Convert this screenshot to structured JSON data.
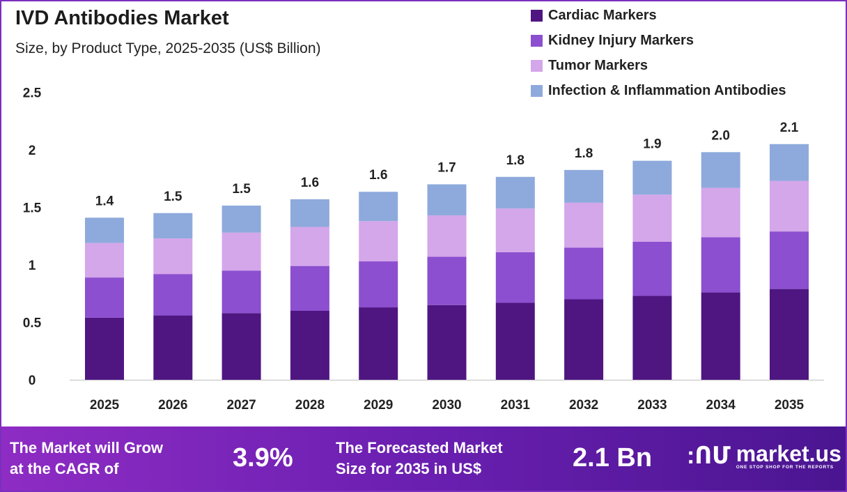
{
  "chart_data": {
    "type": "bar",
    "stacked": true,
    "title": "IVD Antibodies Market",
    "subtitle": "Size, by Product Type, 2025-2035 (US$ Billion)",
    "categories": [
      "2025",
      "2026",
      "2027",
      "2028",
      "2029",
      "2030",
      "2031",
      "2032",
      "2033",
      "2034",
      "2035"
    ],
    "series": [
      {
        "name": "Cardiac Markers",
        "color": "#4f1682",
        "values": [
          0.54,
          0.56,
          0.58,
          0.6,
          0.63,
          0.65,
          0.67,
          0.7,
          0.73,
          0.76,
          0.79
        ]
      },
      {
        "name": "Kidney Injury Markers",
        "color": "#8b4fcf",
        "values": [
          0.35,
          0.36,
          0.37,
          0.39,
          0.4,
          0.42,
          0.44,
          0.45,
          0.47,
          0.48,
          0.5
        ]
      },
      {
        "name": "Tumor Markers",
        "color": "#d4a6ea",
        "values": [
          0.3,
          0.31,
          0.33,
          0.34,
          0.35,
          0.36,
          0.38,
          0.39,
          0.41,
          0.43,
          0.44
        ]
      },
      {
        "name": "Infection & Inflammation Antibodies",
        "color": "#8eaadc",
        "values": [
          0.22,
          0.22,
          0.235,
          0.24,
          0.255,
          0.27,
          0.275,
          0.285,
          0.295,
          0.31,
          0.32
        ]
      }
    ],
    "totals_labels": [
      "1.4",
      "1.5",
      "1.5",
      "1.6",
      "1.6",
      "1.7",
      "1.8",
      "1.8",
      "1.9",
      "2.0",
      "2.1"
    ],
    "ylim": [
      0,
      2.5
    ],
    "yticks": [
      "0",
      "0.5",
      "1",
      "1.5",
      "2",
      "2.5"
    ],
    "grid": false,
    "legend_position": "top-right"
  },
  "footer": {
    "cagr_text_1": "The Market will Grow",
    "cagr_text_2": "at the CAGR of",
    "cagr_value": "3.9%",
    "forecast_text_1": "The Forecasted Market",
    "forecast_text_2": "Size for 2035 in US$",
    "forecast_value": "2.1 Bn",
    "logo_name": "market.us",
    "logo_tagline": "ONE STOP SHOP FOR THE REPORTS"
  }
}
